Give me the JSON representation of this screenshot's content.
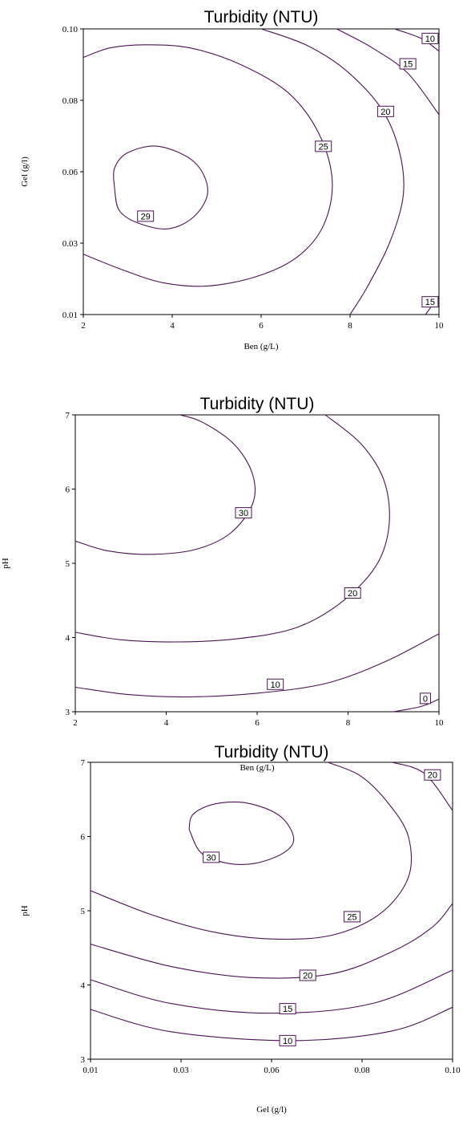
{
  "chart_data": [
    {
      "type": "contour",
      "title": "Turbidity (NTU)",
      "xlabel": "Ben (g/L)",
      "ylabel": "Gel (g/l)",
      "xlim": [
        2,
        10
      ],
      "ylim": [
        0.01,
        0.1
      ],
      "xticks": [
        "2",
        "4",
        "6",
        "8",
        "10"
      ],
      "yticks": [
        "0.01",
        "0.03",
        "0.06",
        "0.08",
        "0.10"
      ],
      "grid": false,
      "contours": [
        {
          "level": "29",
          "points": [
            [
              2.7,
              0.05
            ],
            [
              2.8,
              0.043
            ],
            [
              3.2,
              0.039
            ],
            [
              3.9,
              0.037
            ],
            [
              4.5,
              0.041
            ],
            [
              4.8,
              0.049
            ],
            [
              4.5,
              0.058
            ],
            [
              3.7,
              0.063
            ],
            [
              3.0,
              0.061
            ],
            [
              2.7,
              0.056
            ],
            [
              2.7,
              0.05
            ]
          ],
          "label_at": [
            3.4,
            0.041
          ]
        },
        {
          "level": "25",
          "points": [
            [
              2.0,
              0.091
            ],
            [
              2.6,
              0.094
            ],
            [
              3.4,
              0.095
            ],
            [
              4.4,
              0.094
            ],
            [
              5.5,
              0.089
            ],
            [
              6.6,
              0.08
            ],
            [
              7.3,
              0.067
            ],
            [
              7.6,
              0.052
            ],
            [
              7.4,
              0.038
            ],
            [
              6.8,
              0.028
            ],
            [
              5.9,
              0.022
            ],
            [
              4.8,
              0.019
            ],
            [
              3.8,
              0.02
            ],
            [
              2.9,
              0.024
            ],
            [
              2.0,
              0.029
            ]
          ],
          "label_at": [
            7.4,
            0.063
          ]
        },
        {
          "level": "20",
          "points": [
            [
              6.0,
              0.1
            ],
            [
              7.0,
              0.095
            ],
            [
              7.9,
              0.087
            ],
            [
              8.7,
              0.075
            ],
            [
              9.1,
              0.062
            ],
            [
              9.2,
              0.048
            ],
            [
              8.9,
              0.033
            ],
            [
              8.4,
              0.019
            ],
            [
              8.0,
              0.01
            ]
          ],
          "label_at": [
            8.8,
            0.074
          ]
        },
        {
          "level": "15",
          "points": [
            [
              7.7,
              0.1
            ],
            [
              8.5,
              0.094
            ],
            [
              9.3,
              0.086
            ],
            [
              10.0,
              0.073
            ]
          ],
          "label_at": [
            9.3,
            0.089
          ]
        },
        {
          "level": "10",
          "points": [
            [
              9.0,
              0.1
            ],
            [
              9.6,
              0.097
            ],
            [
              10.0,
              0.093
            ]
          ],
          "label_at": [
            9.8,
            0.097
          ]
        },
        {
          "level": "15",
          "points": [
            [
              9.7,
              0.01
            ],
            [
              10.0,
              0.016
            ]
          ],
          "label_at": [
            9.8,
            0.014
          ]
        }
      ]
    },
    {
      "type": "contour",
      "title": "Turbidity (NTU)",
      "xlabel": "Ben (g/L)",
      "ylabel": "pH",
      "xlim": [
        2,
        10
      ],
      "ylim": [
        3,
        7
      ],
      "xticks": [
        "2",
        "4",
        "6",
        "8",
        "10"
      ],
      "yticks": [
        "3",
        "4",
        "5",
        "6",
        "7"
      ],
      "grid": false,
      "contours": [
        {
          "level": "30",
          "points": [
            [
              2.0,
              5.3
            ],
            [
              2.7,
              5.17
            ],
            [
              3.6,
              5.12
            ],
            [
              4.6,
              5.18
            ],
            [
              5.4,
              5.4
            ],
            [
              5.9,
              5.8
            ],
            [
              5.9,
              6.2
            ],
            [
              5.5,
              6.6
            ],
            [
              4.8,
              6.9
            ],
            [
              4.3,
              7.0
            ]
          ],
          "label_at": [
            5.7,
            5.68
          ]
        },
        {
          "level": "20",
          "points": [
            [
              2.0,
              4.07
            ],
            [
              3.0,
              3.97
            ],
            [
              4.2,
              3.94
            ],
            [
              5.5,
              3.98
            ],
            [
              6.8,
              4.12
            ],
            [
              7.8,
              4.45
            ],
            [
              8.6,
              4.95
            ],
            [
              8.9,
              5.5
            ],
            [
              8.8,
              6.1
            ],
            [
              8.3,
              6.6
            ],
            [
              7.5,
              7.0
            ]
          ],
          "label_at": [
            8.1,
            4.6
          ]
        },
        {
          "level": "10",
          "points": [
            [
              2.0,
              3.33
            ],
            [
              3.2,
              3.23
            ],
            [
              4.5,
              3.2
            ],
            [
              6.0,
              3.25
            ],
            [
              7.5,
              3.38
            ],
            [
              8.8,
              3.67
            ],
            [
              10.0,
              4.05
            ]
          ],
          "label_at": [
            6.4,
            3.37
          ]
        },
        {
          "level": "0",
          "points": [
            [
              9.0,
              3.0
            ],
            [
              9.6,
              3.07
            ],
            [
              10.0,
              3.17
            ]
          ],
          "label_at": [
            9.7,
            3.18
          ]
        }
      ]
    },
    {
      "type": "contour",
      "title": "Turbidity (NTU)",
      "xlabel": "Gel (g/l)",
      "ylabel": "pH",
      "xlim": [
        0.01,
        0.1
      ],
      "ylim": [
        3,
        7
      ],
      "xticks": [
        "0.01",
        "0.03",
        "0.06",
        "0.08",
        "0.10"
      ],
      "yticks": [
        "3",
        "4",
        "5",
        "6",
        "7"
      ],
      "grid": false,
      "contours": [
        {
          "level": "30",
          "points": [
            [
              0.0345,
              6.1
            ],
            [
              0.0375,
              5.78
            ],
            [
              0.044,
              5.64
            ],
            [
              0.051,
              5.64
            ],
            [
              0.058,
              5.78
            ],
            [
              0.0605,
              5.98
            ],
            [
              0.057,
              6.28
            ],
            [
              0.049,
              6.45
            ],
            [
              0.041,
              6.44
            ],
            [
              0.0355,
              6.3
            ],
            [
              0.0345,
              6.1
            ]
          ],
          "label_at": [
            0.04,
            5.72
          ]
        },
        {
          "level": "25",
          "points": [
            [
              0.01,
              5.27
            ],
            [
              0.025,
              4.95
            ],
            [
              0.04,
              4.72
            ],
            [
              0.055,
              4.62
            ],
            [
              0.07,
              4.67
            ],
            [
              0.082,
              4.96
            ],
            [
              0.089,
              5.45
            ],
            [
              0.089,
              6.0
            ],
            [
              0.084,
              6.45
            ],
            [
              0.077,
              6.82
            ],
            [
              0.069,
              7.0
            ]
          ],
          "label_at": [
            0.075,
            4.92
          ]
        },
        {
          "level": "20",
          "points": [
            [
              0.01,
              4.55
            ],
            [
              0.03,
              4.25
            ],
            [
              0.05,
              4.1
            ],
            [
              0.07,
              4.15
            ],
            [
              0.085,
              4.45
            ],
            [
              0.095,
              4.78
            ],
            [
              0.1,
              5.1
            ]
          ],
          "label_at": [
            0.064,
            4.13
          ]
        },
        {
          "level": "15",
          "points": [
            [
              0.01,
              4.07
            ],
            [
              0.03,
              3.75
            ],
            [
              0.055,
              3.62
            ],
            [
              0.08,
              3.75
            ],
            [
              0.1,
              4.2
            ]
          ],
          "label_at": [
            0.059,
            3.68
          ]
        },
        {
          "level": "10",
          "points": [
            [
              0.01,
              3.67
            ],
            [
              0.03,
              3.37
            ],
            [
              0.06,
              3.25
            ],
            [
              0.085,
              3.38
            ],
            [
              0.1,
              3.7
            ]
          ],
          "label_at": [
            0.059,
            3.25
          ]
        },
        {
          "level": "20",
          "points": [
            [
              0.085,
              7.0
            ],
            [
              0.093,
              6.85
            ],
            [
              0.1,
              6.35
            ]
          ],
          "label_at": [
            0.095,
            6.83
          ]
        }
      ]
    }
  ]
}
